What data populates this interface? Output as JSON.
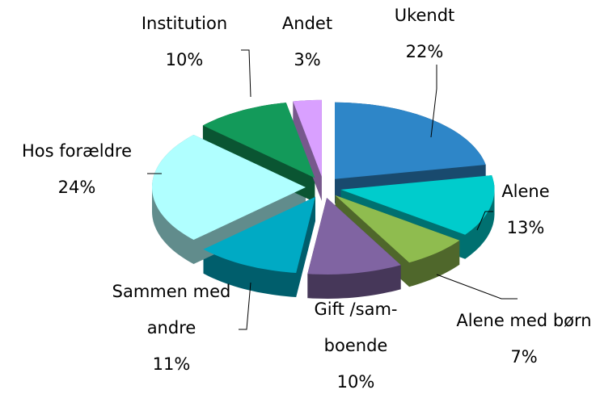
{
  "chart_data": {
    "type": "pie",
    "categories": [
      "Ukendt",
      "Alene",
      "Alene med børn",
      "Gift /sam-\nboende",
      "Sammen med\nandre",
      "Hos forældre",
      "Institution",
      "Andet"
    ],
    "values": [
      22,
      13,
      7,
      10,
      11,
      24,
      10,
      3
    ],
    "value_labels": [
      "22%",
      "13%",
      "7%",
      "10%",
      "11%",
      "24%",
      "10%",
      "3%"
    ],
    "colors": [
      "#2e86c8",
      "#00cccc",
      "#8fbc4f",
      "#8064a2",
      "#00aac4",
      "#b0ffff",
      "#139a5a",
      "#d9a0ff"
    ]
  }
}
